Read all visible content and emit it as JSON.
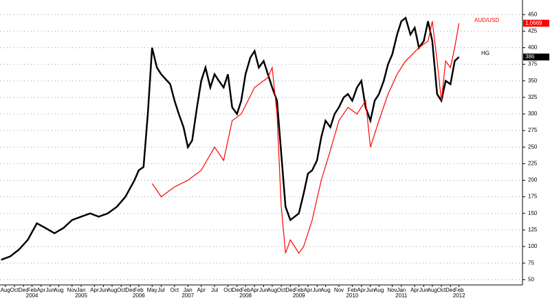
{
  "chart_data": {
    "type": "line",
    "series": [
      {
        "name": "HG",
        "color": "#000000",
        "last_label": "386",
        "x": [
          2003.5,
          2003.67,
          2003.83,
          2004.0,
          2004.17,
          2004.33,
          2004.5,
          2004.67,
          2004.83,
          2005.0,
          2005.17,
          2005.33,
          2005.5,
          2005.67,
          2005.83,
          2006.0,
          2006.08,
          2006.17,
          2006.25,
          2006.33,
          2006.42,
          2006.5,
          2006.67,
          2006.75,
          2006.83,
          2006.92,
          2007.0,
          2007.08,
          2007.17,
          2007.25,
          2007.33,
          2007.42,
          2007.5,
          2007.58,
          2007.67,
          2007.75,
          2007.83,
          2007.92,
          2008.0,
          2008.08,
          2008.17,
          2008.25,
          2008.33,
          2008.42,
          2008.5,
          2008.58,
          2008.67,
          2008.75,
          2008.83,
          2008.92,
          2009.0,
          2009.08,
          2009.17,
          2009.25,
          2009.33,
          2009.42,
          2009.5,
          2009.58,
          2009.67,
          2009.75,
          2009.83,
          2009.92,
          2010.0,
          2010.08,
          2010.17,
          2010.25,
          2010.33,
          2010.42,
          2010.5,
          2010.58,
          2010.67,
          2010.75,
          2010.83,
          2010.92,
          2011.0,
          2011.08,
          2011.17,
          2011.25,
          2011.33,
          2011.42,
          2011.5,
          2011.58,
          2011.67,
          2011.75,
          2011.83,
          2011.92,
          2012.0,
          2012.08
        ],
        "values": [
          80,
          85,
          95,
          110,
          135,
          128,
          120,
          128,
          140,
          145,
          150,
          145,
          150,
          160,
          175,
          200,
          215,
          220,
          300,
          400,
          370,
          360,
          345,
          320,
          300,
          280,
          250,
          260,
          310,
          350,
          370,
          340,
          360,
          350,
          340,
          360,
          310,
          300,
          320,
          360,
          385,
          395,
          370,
          380,
          360,
          340,
          320,
          240,
          160,
          140,
          145,
          150,
          180,
          210,
          215,
          230,
          265,
          290,
          280,
          300,
          310,
          325,
          330,
          320,
          340,
          350,
          310,
          290,
          320,
          330,
          350,
          375,
          390,
          420,
          440,
          445,
          420,
          430,
          400,
          410,
          440,
          410,
          330,
          320,
          350,
          345,
          380,
          386
        ]
      },
      {
        "name": "AUD/USD",
        "color": "#ff0000",
        "last_label": "1.0669",
        "x": [
          2006.33,
          2006.42,
          2006.5,
          2006.75,
          2007.0,
          2007.25,
          2007.5,
          2007.67,
          2007.83,
          2008.0,
          2008.25,
          2008.5,
          2008.58,
          2008.67,
          2008.75,
          2008.83,
          2008.92,
          2009.08,
          2009.17,
          2009.33,
          2009.5,
          2009.67,
          2009.83,
          2010.0,
          2010.17,
          2010.33,
          2010.42,
          2010.58,
          2010.75,
          2010.92,
          2011.08,
          2011.33,
          2011.5,
          2011.58,
          2011.67,
          2011.75,
          2011.83,
          2011.92,
          2012.0,
          2012.08
        ],
        "values": [
          195,
          185,
          175,
          190,
          200,
          215,
          250,
          230,
          290,
          300,
          340,
          355,
          370,
          300,
          160,
          90,
          110,
          90,
          100,
          140,
          200,
          245,
          290,
          310,
          300,
          320,
          250,
          290,
          330,
          360,
          380,
          400,
          410,
          440,
          380,
          320,
          380,
          370,
          400,
          437
        ]
      }
    ],
    "xlim": [
      2003.48,
      2013.27
    ],
    "xticks": [
      {
        "value": 2003.58,
        "label": "Aug"
      },
      {
        "value": 2003.75,
        "label": "Oct"
      },
      {
        "value": 2003.92,
        "label": "Dec"
      },
      {
        "value": 2004.08,
        "label": "Feb"
      },
      {
        "value": 2004.25,
        "label": "Apr"
      },
      {
        "value": 2004.42,
        "label": "Jun"
      },
      {
        "value": 2004.58,
        "label": "Aug"
      },
      {
        "value": 2004.83,
        "label": "Nov"
      },
      {
        "value": 2005.0,
        "label": "Jan"
      },
      {
        "value": 2005.25,
        "label": "Apr"
      },
      {
        "value": 2005.42,
        "label": "Jun"
      },
      {
        "value": 2005.58,
        "label": "Aug"
      },
      {
        "value": 2005.75,
        "label": "Oct"
      },
      {
        "value": 2005.92,
        "label": "Dec"
      },
      {
        "value": 2006.08,
        "label": "Feb"
      },
      {
        "value": 2006.33,
        "label": "May"
      },
      {
        "value": 2006.5,
        "label": "Jul"
      },
      {
        "value": 2006.75,
        "label": "Oct"
      },
      {
        "value": 2007.0,
        "label": "Jan"
      },
      {
        "value": 2007.25,
        "label": "Apr"
      },
      {
        "value": 2007.5,
        "label": "Jul"
      },
      {
        "value": 2007.75,
        "label": "Oct"
      },
      {
        "value": 2007.92,
        "label": "Dec"
      },
      {
        "value": 2008.08,
        "label": "Feb"
      },
      {
        "value": 2008.25,
        "label": "Apr"
      },
      {
        "value": 2008.42,
        "label": "Jun"
      },
      {
        "value": 2008.58,
        "label": "Aug"
      },
      {
        "value": 2008.75,
        "label": "Oct"
      },
      {
        "value": 2008.92,
        "label": "Dec"
      },
      {
        "value": 2009.08,
        "label": "Feb"
      },
      {
        "value": 2009.25,
        "label": "Apr"
      },
      {
        "value": 2009.42,
        "label": "Jun"
      },
      {
        "value": 2009.58,
        "label": "Aug"
      },
      {
        "value": 2009.83,
        "label": "Nov"
      },
      {
        "value": 2010.08,
        "label": "Feb"
      },
      {
        "value": 2010.25,
        "label": "Apr"
      },
      {
        "value": 2010.42,
        "label": "Jun"
      },
      {
        "value": 2010.58,
        "label": "Aug"
      },
      {
        "value": 2010.83,
        "label": "Nov"
      },
      {
        "value": 2011.0,
        "label": "Jan"
      },
      {
        "value": 2011.25,
        "label": "Apr"
      },
      {
        "value": 2011.42,
        "label": "Jun"
      },
      {
        "value": 2011.58,
        "label": "Aug"
      },
      {
        "value": 2011.75,
        "label": "Oct"
      },
      {
        "value": 2011.92,
        "label": "Dec"
      },
      {
        "value": 2012.08,
        "label": "Feb"
      }
    ],
    "year_ticks": [
      {
        "value": 2004.08,
        "label": "2004"
      },
      {
        "value": 2005.0,
        "label": "2005"
      },
      {
        "value": 2006.08,
        "label": "2006"
      },
      {
        "value": 2007.0,
        "label": "2007"
      },
      {
        "value": 2008.08,
        "label": "2008"
      },
      {
        "value": 2009.08,
        "label": "2009"
      },
      {
        "value": 2010.08,
        "label": "2010"
      },
      {
        "value": 2011.0,
        "label": "2011"
      },
      {
        "value": 2012.08,
        "label": "2012"
      }
    ],
    "ylim": [
      42,
      472
    ],
    "yticks": [
      50,
      75,
      100,
      125,
      150,
      175,
      200,
      225,
      250,
      275,
      300,
      325,
      350,
      375,
      400,
      425,
      450
    ],
    "grid": true
  }
}
